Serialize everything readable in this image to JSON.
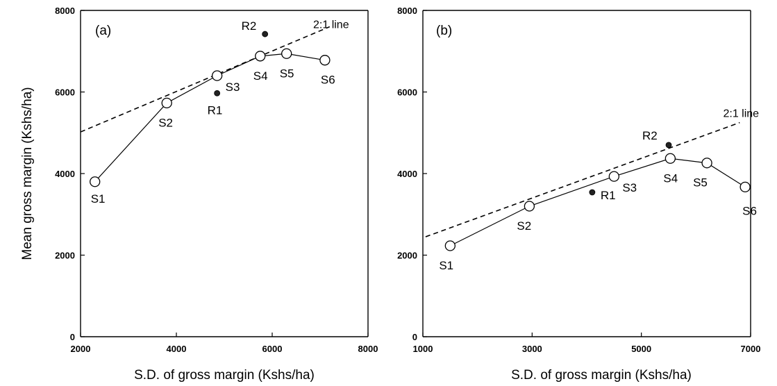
{
  "chart_data": [
    {
      "type": "scatter",
      "panel_label": "(a)",
      "xlabel": "S.D. of gross margin (Kshs/ha)",
      "ylabel": "Mean gross margin (Kshs/ha)",
      "xlim": [
        2000,
        8000
      ],
      "ylim": [
        0,
        8000
      ],
      "xticks": [
        2000,
        4000,
        6000,
        8000
      ],
      "yticks": [
        0,
        2000,
        4000,
        6000,
        8000
      ],
      "series": [
        {
          "marker": "open-circle",
          "connected": true,
          "points": [
            {
              "label": "S1",
              "x": 2300,
              "y": 3800
            },
            {
              "label": "S2",
              "x": 3800,
              "y": 5730
            },
            {
              "label": "S3",
              "x": 4850,
              "y": 6400
            },
            {
              "label": "S4",
              "x": 5750,
              "y": 6880
            },
            {
              "label": "S5",
              "x": 6300,
              "y": 6940
            },
            {
              "label": "S6",
              "x": 7100,
              "y": 6780
            }
          ]
        },
        {
          "marker": "filled-circle",
          "connected": false,
          "points": [
            {
              "label": "R1",
              "x": 4850,
              "y": 5970
            },
            {
              "label": "R2",
              "x": 5850,
              "y": 7420
            }
          ]
        }
      ],
      "reference_line": {
        "label": "2:1 line",
        "x": [
          2000,
          7200
        ],
        "y": [
          5020,
          7600
        ]
      }
    },
    {
      "type": "scatter",
      "panel_label": "(b)",
      "xlabel": "S.D. of gross margin (Kshs/ha)",
      "ylabel": "",
      "xlim": [
        1000,
        7000
      ],
      "ylim": [
        0,
        8000
      ],
      "xticks": [
        1000,
        3000,
        5000,
        7000
      ],
      "yticks": [
        0,
        2000,
        4000,
        6000,
        8000
      ],
      "series": [
        {
          "marker": "open-circle",
          "connected": true,
          "points": [
            {
              "label": "S1",
              "x": 1500,
              "y": 2230
            },
            {
              "label": "S2",
              "x": 2950,
              "y": 3200
            },
            {
              "label": "S3",
              "x": 4500,
              "y": 3930
            },
            {
              "label": "S4",
              "x": 5530,
              "y": 4370
            },
            {
              "label": "S5",
              "x": 6200,
              "y": 4260
            },
            {
              "label": "S6",
              "x": 6900,
              "y": 3670
            }
          ]
        },
        {
          "marker": "filled-circle",
          "connected": false,
          "points": [
            {
              "label": "R1",
              "x": 4100,
              "y": 3540
            },
            {
              "label": "R2",
              "x": 5500,
              "y": 4700
            }
          ]
        }
      ],
      "reference_line": {
        "label": "2:1 line",
        "x": [
          1050,
          6800
        ],
        "y": [
          2450,
          5250
        ]
      }
    }
  ]
}
